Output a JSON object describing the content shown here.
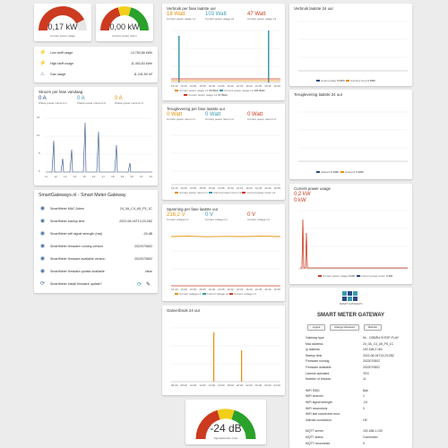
{
  "colors": {
    "blue": "#2a4a86",
    "orange": "#e8900c",
    "red": "#cc3a20",
    "teal": "#3c9ab0",
    "green": "#2aa12a",
    "yellow": "#f2cf1b"
  },
  "gauges": {
    "usage": {
      "value": "0,17 kW",
      "label": "Current power usage",
      "fill": 0.85
    },
    "return": {
      "value": "0,00 kW",
      "label": "Current power return",
      "fill": 0
    }
  },
  "meters": [
    {
      "icon": "power-icon",
      "label": "Low tariff usage",
      "value": "14.783,66 kWh"
    },
    {
      "icon": "power-icon",
      "label": "High tariff usage",
      "value": "11.453,63 kWh"
    },
    {
      "icon": "fire-icon",
      "label": "Gas usage",
      "value": "11.241,59 m³"
    }
  ],
  "phases_today": {
    "title": "Stroom per fase vandaag",
    "v1": "0 A",
    "v2": "0 A",
    "v3": "0 A",
    "l1": "Phase power current L1",
    "l2": "Phase power current L2",
    "l3": "Phase power current L3",
    "ticks": [
      "11",
      "12",
      "13",
      "14",
      "15",
      "16",
      "17",
      "18",
      "19",
      "20",
      "21",
      "22"
    ],
    "yticks": [
      "15",
      "10",
      "5",
      "0"
    ]
  },
  "phase_usage": {
    "title": "Verbruik per fase laatste uur",
    "v1": "18 Watt",
    "v2": "103 Watt",
    "v3": "47 Watt",
    "l1": "Current power usage L1",
    "l2": "Current power usage L2",
    "l3": "Current power usage L3",
    "legend_values": [
      "18 Watt",
      "103 Watt",
      "47 Watt"
    ],
    "ticks": [
      "15:40",
      "15:45",
      "15:50",
      "15:55",
      "16:00",
      "16:05",
      "16:10",
      "16:15",
      "16:20",
      "16:25",
      "16:30",
      "16:35"
    ]
  },
  "phase_return": {
    "title": "Teruglevering per fase laatste uur",
    "v1": "0 Watt",
    "v2": "0 Watt",
    "v3": "0 Watt",
    "l1": "Current power return L1",
    "l2": "Current power return L2",
    "l3": "Current power return L3",
    "ticks": [
      "15:40",
      "15:45",
      "15:50",
      "15:55",
      "16:00",
      "16:05",
      "16:10",
      "16:15",
      "16:20",
      "16:25",
      "16:30",
      "16:35"
    ]
  },
  "voltage": {
    "title": "Spanning per fase laatste uur",
    "v1": "216,2 V",
    "v2": "0 V",
    "v3": "0 V",
    "l1": "Current voltage L1",
    "l2": "Current voltage L2",
    "l3": "Current voltage L3",
    "ticks": [
      "15:40",
      "15:45",
      "15:50",
      "15:55",
      "16:00",
      "16:05",
      "16:10",
      "16:15",
      "16:20",
      "16:25",
      "16:30",
      "16:35"
    ]
  },
  "daily_use": {
    "title": "Verbruik laatste 24 uur",
    "l1": "levering laag",
    "l2": "levering hoog",
    "val1": "0 kWh",
    "val2": "0 kWh"
  },
  "daily_return": {
    "title": "Teruglevering laatste 24 uur",
    "l1": "dallaarif",
    "l2": "piekaarif",
    "val1": "0 kWh",
    "val2": "0 kWh"
  },
  "current": {
    "title": "Current power usage",
    "value": "0,2 kW",
    "value2": "0 kW",
    "l1": "Current power usage",
    "l2": "Current power return",
    "lv1": "0 kW",
    "lv2": "0 kW"
  },
  "water": {
    "title": "Gasverbruik 24 uur",
    "ticks": [
      "06:00",
      "08:00",
      "10:00",
      "12:00",
      "14:00",
      "16:00",
      "18:00",
      "20:00",
      "22:00",
      "00:00",
      "02:00",
      "04:00"
    ]
  },
  "signal": {
    "value": "-24 dB",
    "label": "Signaalsterkte (rssi)",
    "fill": 0.9
  },
  "gateway": {
    "title": "SmartGateways.nl - Smart Meter Gateway",
    "rows": [
      {
        "icon": "eye-icon",
        "label": "SmartMeter MAC Adres",
        "value": "24_0A_C4_A5_F5_1C"
      },
      {
        "icon": "eye-icon",
        "label": "SmartMeter startup time",
        "value": "2022-08-04T13:23:28Z"
      },
      {
        "icon": "eye-icon",
        "label": "SmartMeter wifi signal strength (rssi)",
        "value": "-24 dB"
      },
      {
        "icon": "eye-icon",
        "label": "SmartMeter firmware running version",
        "value": "2022070802"
      },
      {
        "icon": "eye-icon",
        "label": "SmartMeter firmware available version",
        "value": "2022070802"
      },
      {
        "icon": "eye-icon",
        "label": "SmartMeter firmware update available",
        "value": "false"
      },
      {
        "icon": "update-icon",
        "label": "SmartMeter install firmware update?",
        "value": ""
      }
    ]
  },
  "panel": {
    "logo_text": "SMART GATEWAYS",
    "title": "SMART METER GATEWAY",
    "buttons": [
      "Logout",
      "Change Password",
      "Refresh"
    ],
    "rows": [
      {
        "k": "Gateway type",
        "v": "NL - DSMR4+5 ESP-FLAY"
      },
      {
        "k": "Mac address",
        "v": "24_0A_C4_A5_F5_1C"
      },
      {
        "k": "Ip address",
        "v": "192.168.2.184"
      },
      {
        "k": "Startup time",
        "v": "2022-08-04T13:23:28Z"
      },
      {
        "k": "Firmware running",
        "v": "2022070802"
      },
      {
        "k": "Firmware available",
        "v": "2022070802"
      },
      {
        "k": "License activated",
        "v": "YES"
      },
      {
        "k": "Number of reboots",
        "v": "11"
      }
    ],
    "wifi": [
      {
        "k": "WiFi SSID",
        "v": "Bak"
      },
      {
        "k": "WiFi channel",
        "v": "1"
      },
      {
        "k": "WiFi signal strength",
        "v": "-24"
      },
      {
        "k": "WiFi reconnects",
        "v": "0"
      },
      {
        "k": "WiFi last connection error",
        "v": ""
      },
      {
        "k": "Internet connection",
        "v": "OK"
      }
    ],
    "mqtt": [
      {
        "k": "MQTT server",
        "v": "192.168.1.139"
      },
      {
        "k": "MQTT status",
        "v": "Connected"
      },
      {
        "k": "MQTT reconnects",
        "v": "9"
      }
    ]
  }
}
